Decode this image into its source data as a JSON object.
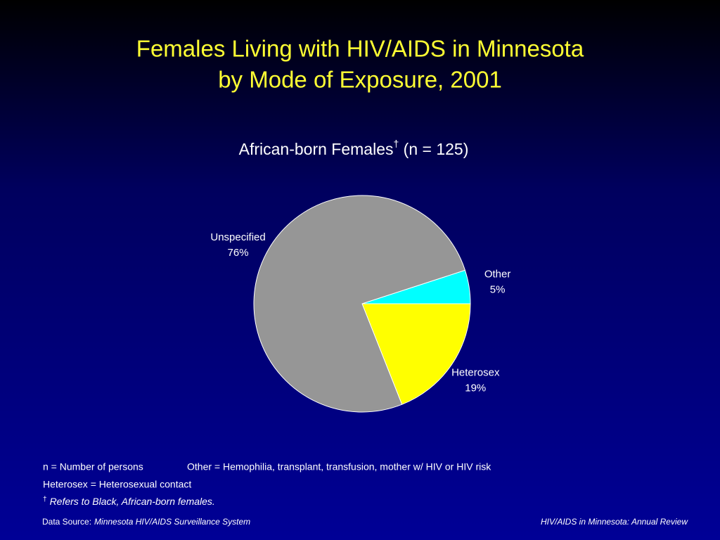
{
  "chart_data": {
    "type": "pie",
    "title": [
      "Females Living with HIV/AIDS in Minnesota",
      "by Mode of Exposure, 2001"
    ],
    "subtitle": {
      "text": "African-born Females",
      "mark": "†",
      "rest": " (n = 125)"
    },
    "categories": [
      "Heterosex",
      "Unspecified",
      "Other"
    ],
    "values": [
      19,
      76,
      5
    ],
    "value_labels": [
      "19%",
      "76%",
      "5%"
    ],
    "colors": [
      "#ffff00",
      "#969696",
      "#00ffff"
    ],
    "footnotes": {
      "n": "n = Number of persons",
      "other": "Other = Hemophilia, transplant, transfusion, mother w/ HIV or HIV risk",
      "heterosex": "Heterosex = Heterosexual contact",
      "dagger": "†",
      "dagger_text": "Refers to Black, African-born females."
    },
    "source_label": "Data Source:",
    "source": "Minnesota HIV/AIDS Surveillance System",
    "footer_right": "HIV/AIDS in Minnesota: Annual Review"
  }
}
